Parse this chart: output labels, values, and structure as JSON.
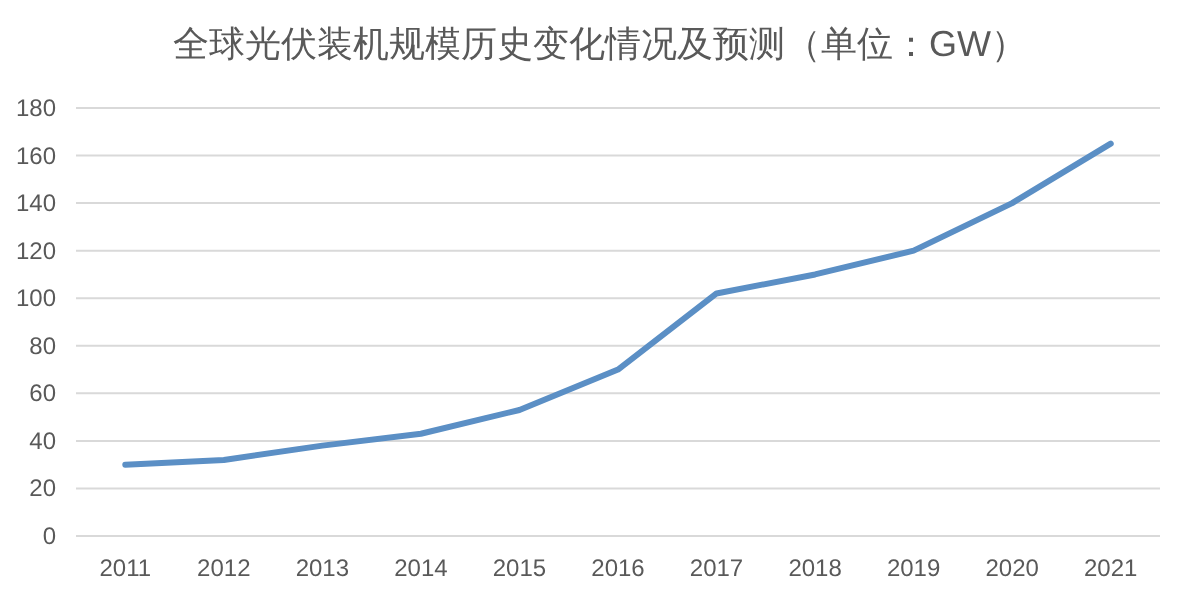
{
  "chart_data": {
    "type": "line",
    "title": "全球光伏装机规模历史变化情况及预测（单位：GW）",
    "categories": [
      "2011",
      "2012",
      "2013",
      "2014",
      "2015",
      "2016",
      "2017",
      "2018",
      "2019",
      "2020",
      "2021"
    ],
    "series": [
      {
        "color": "#5b8fc5",
        "values": [
          30,
          32,
          38,
          43,
          53,
          70,
          102,
          110,
          120,
          140,
          165
        ]
      }
    ],
    "ylim": [
      0,
      180
    ],
    "yticks": [
      0,
      20,
      40,
      60,
      80,
      100,
      120,
      140,
      160,
      180
    ],
    "grid": "y",
    "marker": "none",
    "line_style": "solid"
  }
}
